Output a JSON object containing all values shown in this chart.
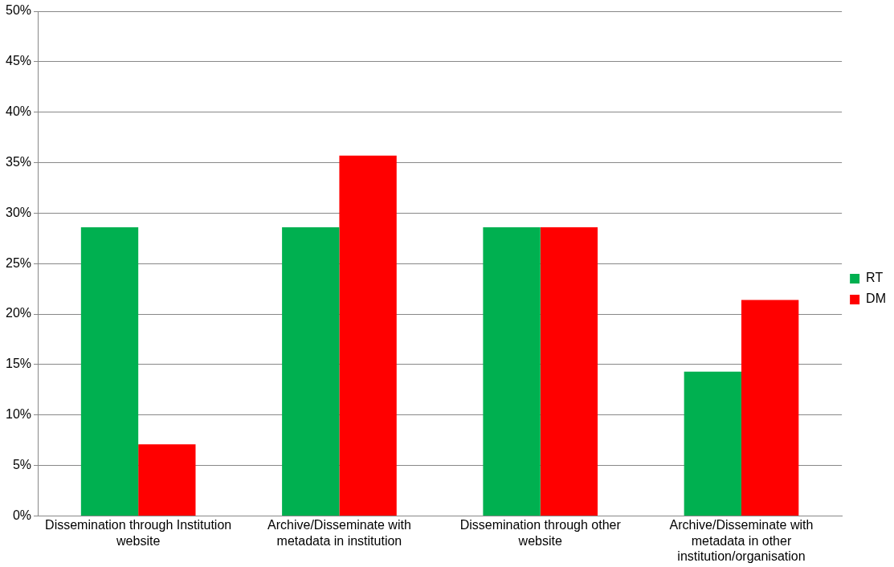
{
  "chart_data": {
    "type": "bar",
    "categories": [
      "Dissemination through Institution website",
      "Archive/Disseminate with metadata in institution",
      "Dissemination through other website",
      "Archive/Disseminate with metadata in other institution/organisation"
    ],
    "series": [
      {
        "name": "RT",
        "color": "#00b050",
        "values": [
          28.6,
          28.6,
          28.6,
          14.3
        ]
      },
      {
        "name": "DM",
        "color": "#ff0000",
        "values": [
          7.1,
          35.7,
          28.6,
          21.4
        ]
      }
    ],
    "ylim": [
      0,
      50
    ],
    "yticks": [
      {
        "value": 0,
        "label": "0%"
      },
      {
        "value": 5,
        "label": "5%"
      },
      {
        "value": 10,
        "label": "10%"
      },
      {
        "value": 15,
        "label": "15%"
      },
      {
        "value": 20,
        "label": "20%"
      },
      {
        "value": 25,
        "label": "25%"
      },
      {
        "value": 30,
        "label": "30%"
      },
      {
        "value": 35,
        "label": "35%"
      },
      {
        "value": 40,
        "label": "40%"
      },
      {
        "value": 45,
        "label": "45%"
      },
      {
        "value": 50,
        "label": "50%"
      }
    ],
    "grid": "y",
    "legend": "right"
  }
}
